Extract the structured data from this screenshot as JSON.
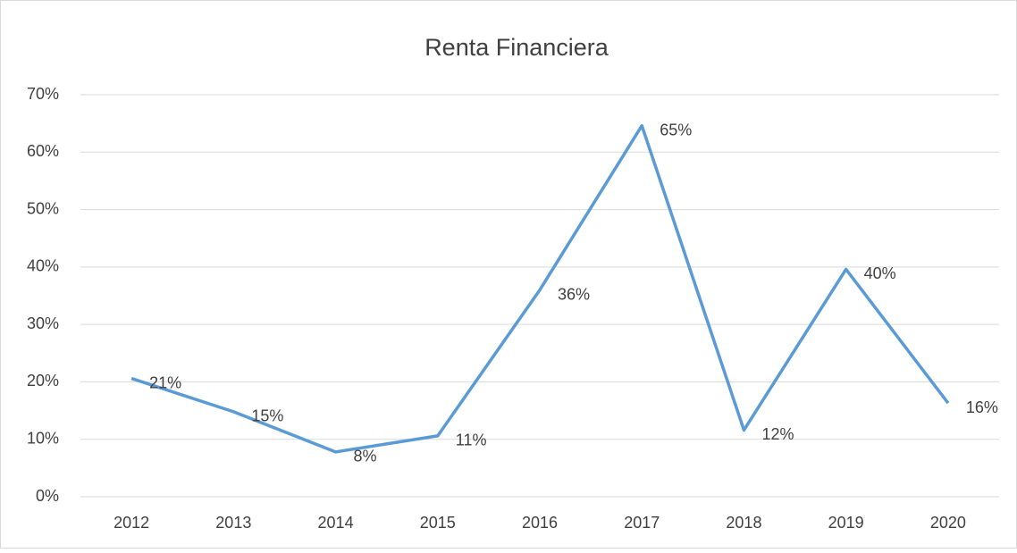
{
  "chart_data": {
    "type": "line",
    "title": "Renta Financiera",
    "categories": [
      "2012",
      "2013",
      "2014",
      "2015",
      "2016",
      "2017",
      "2018",
      "2019",
      "2020"
    ],
    "series": [
      {
        "name": "Renta Financiera",
        "color": "#5b9bd5",
        "values": [
          20.6,
          14.8,
          7.8,
          10.6,
          36.0,
          64.6,
          11.6,
          39.6,
          16.3
        ],
        "value_labels": [
          "21%",
          "15%",
          "8%",
          "11%",
          "36%",
          "65%",
          "12%",
          "40%",
          "16%"
        ]
      }
    ],
    "ylim": [
      0,
      70
    ],
    "yticks": [
      {
        "value": 0,
        "label": "0%"
      },
      {
        "value": 10,
        "label": "10%"
      },
      {
        "value": 20,
        "label": "20%"
      },
      {
        "value": 30,
        "label": "30%"
      },
      {
        "value": 40,
        "label": "40%"
      },
      {
        "value": 50,
        "label": "50%"
      },
      {
        "value": 60,
        "label": "60%"
      },
      {
        "value": 70,
        "label": "70%"
      }
    ],
    "grid": true
  }
}
